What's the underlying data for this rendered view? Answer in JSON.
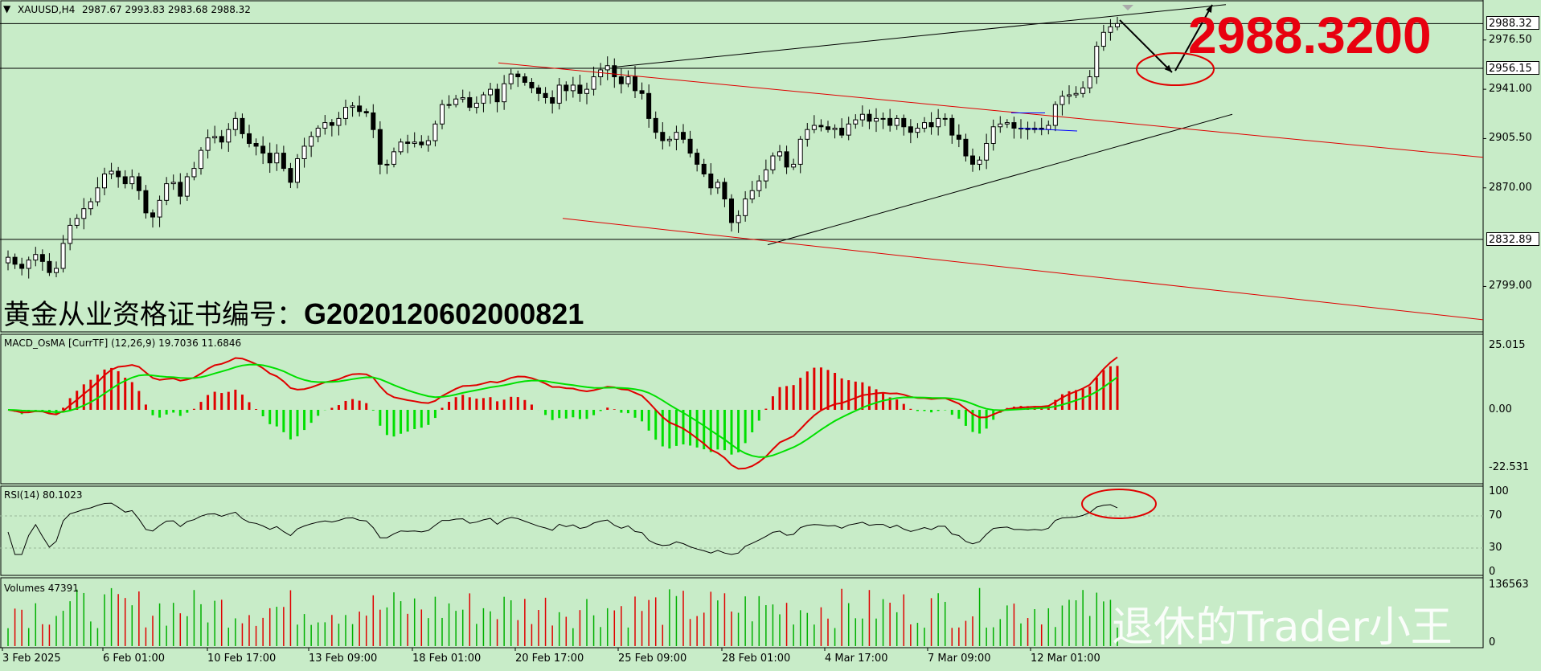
{
  "header": {
    "symbol": "XAUUSD,H4",
    "ohlc": "2987.67 2993.83 2983.68 2988.32"
  },
  "annotation_price": "2988.3200",
  "certificate": {
    "prefix": "黄金从业资格证书编号：",
    "number": "G2020120602000821"
  },
  "watermark": "退休的Trader小王",
  "chart_data": [
    {
      "type": "candlestick",
      "title": "XAUUSD,H4",
      "last_ohlc": {
        "open": 2987.67,
        "high": 2993.83,
        "low": 2983.68,
        "close": 2988.32
      },
      "y_ticks": [
        "2976.50",
        "2941.00",
        "2905.50",
        "2870.00",
        "2799.00"
      ],
      "y_tags": [
        "2988.32",
        "2956.15",
        "2832.89"
      ],
      "ylim": [
        2768,
        3003
      ],
      "x_ticks": [
        "3 Feb 2025",
        "6 Feb 01:00",
        "10 Feb 17:00",
        "13 Feb 09:00",
        "18 Feb 01:00",
        "20 Feb 17:00",
        "25 Feb 09:00",
        "28 Feb 01:00",
        "4 Mar 17:00",
        "7 Mar 09:00",
        "12 Mar 01:00"
      ],
      "close_series": [
        2820,
        2815,
        2812,
        2818,
        2822,
        2817,
        2809,
        2812,
        2830,
        2843,
        2848,
        2855,
        2860,
        2870,
        2880,
        2882,
        2878,
        2873,
        2878,
        2868,
        2852,
        2849,
        2861,
        2873,
        2874,
        2864,
        2878,
        2884,
        2897,
        2906,
        2907,
        2903,
        2912,
        2920,
        2909,
        2902,
        2900,
        2895,
        2888,
        2895,
        2884,
        2874,
        2891,
        2900,
        2907,
        2913,
        2917,
        2915,
        2920,
        2928,
        2929,
        2925,
        2924,
        2912,
        2887,
        2887,
        2896,
        2903,
        2902,
        2903,
        2901,
        2904,
        2916,
        2930,
        2930,
        2934,
        2935,
        2928,
        2931,
        2937,
        2941,
        2932,
        2945,
        2952,
        2950,
        2946,
        2942,
        2938,
        2935,
        2931,
        2944,
        2940,
        2944,
        2938,
        2941,
        2950,
        2955,
        2958,
        2950,
        2945,
        2950,
        2940,
        2938,
        2920,
        2910,
        2904,
        2905,
        2910,
        2905,
        2895,
        2887,
        2880,
        2870,
        2874,
        2862,
        2845,
        2850,
        2862,
        2868,
        2875,
        2883,
        2893,
        2896,
        2885,
        2887,
        2905,
        2912,
        2915,
        2914,
        2912,
        2913,
        2908,
        2916,
        2919,
        2923,
        2918,
        2920,
        2920,
        2915,
        2920,
        2914,
        2910,
        2913,
        2917,
        2914,
        2920,
        2920,
        2908,
        2905,
        2893,
        2887,
        2890,
        2902,
        2914,
        2916,
        2917,
        2913,
        2913,
        2912,
        2913,
        2912,
        2915,
        2930,
        2936,
        2937,
        2938,
        2942,
        2950,
        2972,
        2982,
        2986,
        2988.32
      ],
      "lines": [
        {
          "name": "upper channel",
          "color": "#000000"
        },
        {
          "name": "lower trend",
          "color": "#000000"
        },
        {
          "name": "red channel top",
          "color": "#e00000"
        },
        {
          "name": "red channel bottom",
          "color": "#e00000"
        }
      ]
    },
    {
      "type": "bar",
      "title": "MACD_OsMA [CurrTF] (12,26,9) 19.7036 11.6846",
      "y_ticks": [
        "25.015",
        "0.00",
        "-22.531"
      ],
      "ylim": [
        -28,
        28
      ],
      "series": [
        {
          "name": "MACD",
          "color": "#e00000"
        },
        {
          "name": "Signal",
          "color": "#00e000"
        }
      ]
    },
    {
      "type": "line",
      "title": "RSI(14) 80.1023",
      "y_ticks": [
        "100",
        "70",
        "30",
        "0"
      ],
      "ylim": [
        0,
        100
      ],
      "last_value": 80.1023
    },
    {
      "type": "bar",
      "title": "Volumes 47391",
      "y_ticks": [
        "136563",
        "0"
      ],
      "ylim": [
        0,
        136563
      ]
    }
  ],
  "colors": {
    "background": "#c8ecc8",
    "bull": "#000000",
    "bear": "#000000",
    "macd_pos": "#e00000",
    "macd_neg": "#00e000",
    "annotation": "#e8000f"
  }
}
